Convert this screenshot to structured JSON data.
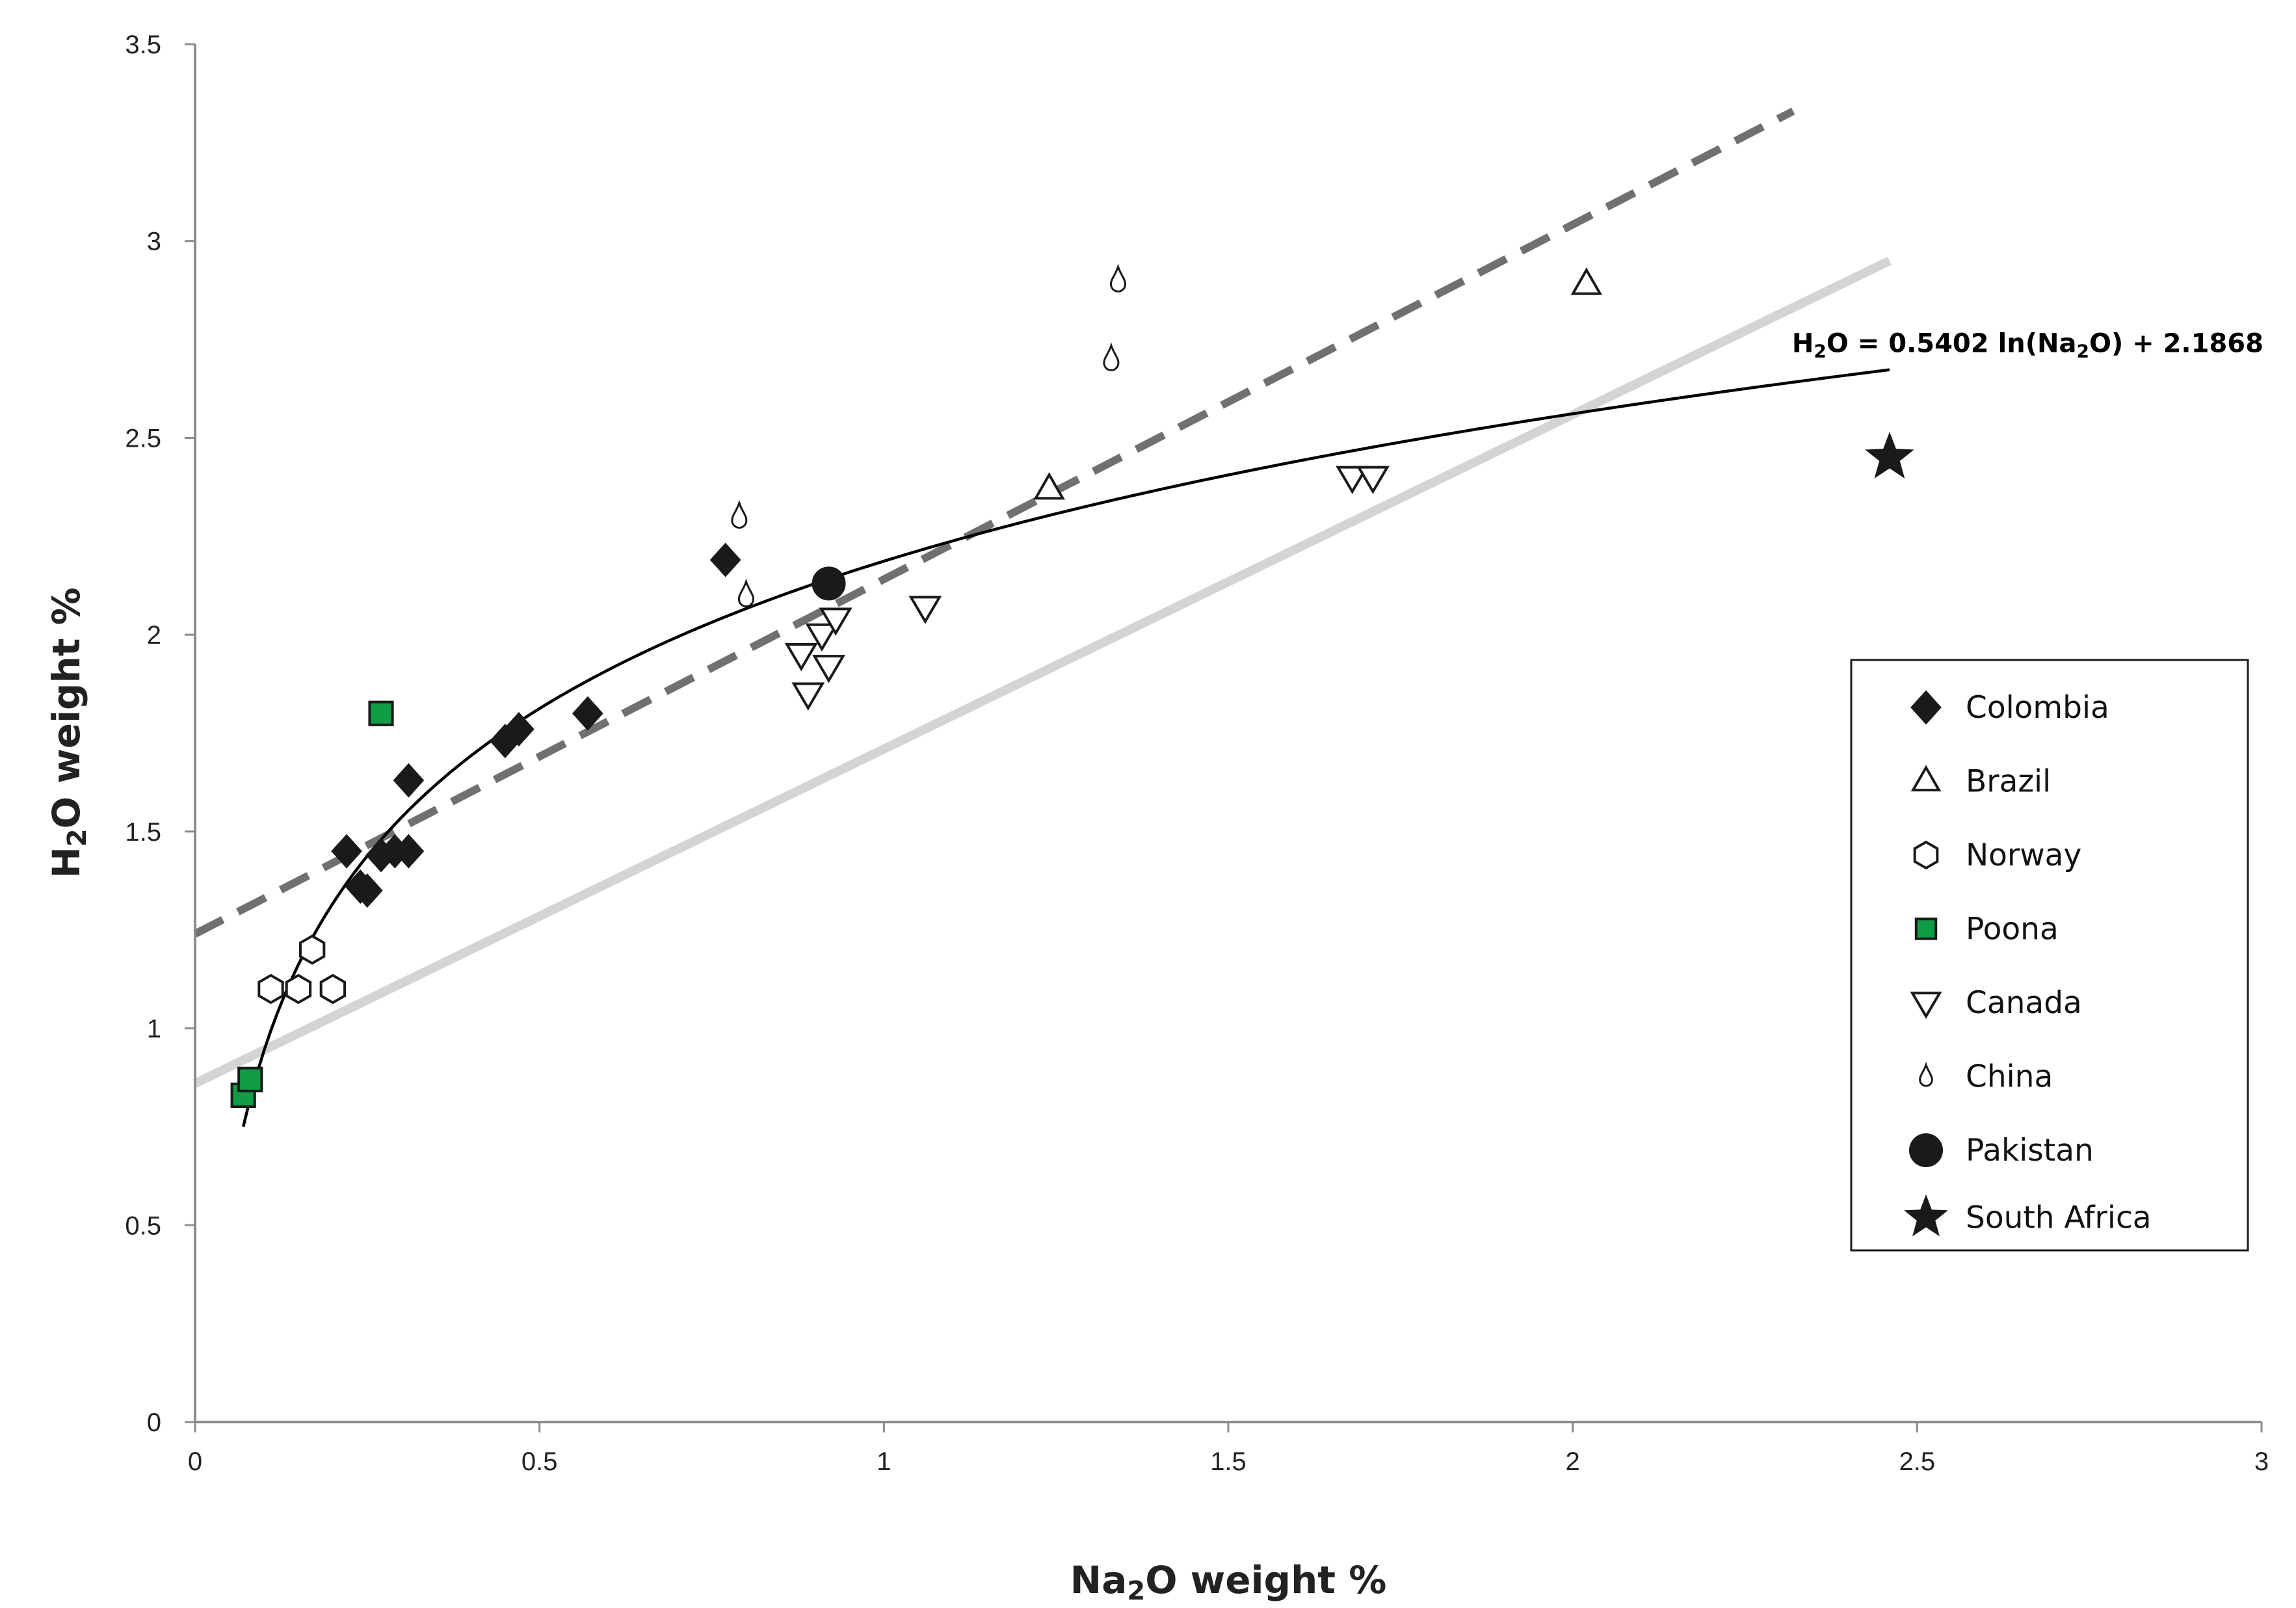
{
  "chart_data": {
    "type": "scatter",
    "title": "",
    "xlabel": {
      "pre": "Na",
      "sub": "2",
      "post": "O weight %"
    },
    "ylabel": {
      "pre": "H",
      "sub": "2",
      "post": "O weight %"
    },
    "xlim": [
      0,
      3
    ],
    "ylim": [
      0,
      3.5
    ],
    "x_ticks": [
      0,
      0.5,
      1,
      1.5,
      2,
      2.5,
      3
    ],
    "x_tick_labels": [
      "0",
      "0.5",
      "1",
      "1.5",
      "2",
      "2.5",
      "3"
    ],
    "y_ticks": [
      0,
      0.5,
      1,
      1.5,
      2,
      2.5,
      3,
      3.5
    ],
    "y_tick_labels": [
      "0",
      "0.5",
      "1",
      "1.5",
      "2",
      "2.5",
      "3",
      "3.5"
    ],
    "grid": false,
    "legend_position": "right",
    "series": [
      {
        "name": "Colombia",
        "marker": "diamond",
        "fill": "#1a1a1a",
        "stroke": "#1a1a1a",
        "points": [
          [
            0.22,
            1.45
          ],
          [
            0.24,
            1.36
          ],
          [
            0.25,
            1.35
          ],
          [
            0.27,
            1.44
          ],
          [
            0.29,
            1.45
          ],
          [
            0.31,
            1.45
          ],
          [
            0.31,
            1.63
          ],
          [
            0.45,
            1.73
          ],
          [
            0.47,
            1.76
          ],
          [
            0.57,
            1.8
          ],
          [
            0.77,
            2.19
          ]
        ]
      },
      {
        "name": "Brazil",
        "marker": "triangle-up",
        "fill": "#ffffff",
        "stroke": "#1a1a1a",
        "points": [
          [
            1.24,
            2.37
          ],
          [
            2.02,
            2.89
          ]
        ]
      },
      {
        "name": "Norway",
        "marker": "hexagon",
        "fill": "#ffffff",
        "stroke": "#1a1a1a",
        "points": [
          [
            0.11,
            1.1
          ],
          [
            0.15,
            1.1
          ],
          [
            0.17,
            1.2
          ],
          [
            0.2,
            1.1
          ]
        ]
      },
      {
        "name": "Poona",
        "marker": "square",
        "fill": "#0f9d46",
        "stroke": "#1a1a1a",
        "points": [
          [
            0.07,
            0.83
          ],
          [
            0.08,
            0.87
          ],
          [
            0.27,
            1.8
          ]
        ]
      },
      {
        "name": "Canada",
        "marker": "triangle-down",
        "fill": "#ffffff",
        "stroke": "#1a1a1a",
        "points": [
          [
            0.88,
            1.95
          ],
          [
            0.89,
            1.85
          ],
          [
            0.91,
            2.0
          ],
          [
            0.92,
            1.92
          ],
          [
            0.93,
            2.04
          ],
          [
            1.06,
            2.07
          ],
          [
            1.68,
            2.4
          ],
          [
            1.71,
            2.4
          ]
        ]
      },
      {
        "name": "China",
        "marker": "drop",
        "fill": "#ffffff",
        "stroke": "#1a1a1a",
        "points": [
          [
            0.79,
            2.3
          ],
          [
            0.8,
            2.1
          ],
          [
            1.33,
            2.7
          ],
          [
            1.34,
            2.9
          ]
        ]
      },
      {
        "name": "Pakistan",
        "marker": "circle",
        "fill": "#1a1a1a",
        "stroke": "#1a1a1a",
        "points": [
          [
            0.92,
            2.13
          ]
        ]
      },
      {
        "name": "South Africa",
        "marker": "star",
        "fill": "#1a1a1a",
        "stroke": "#1a1a1a",
        "points": [
          [
            2.46,
            2.45
          ]
        ]
      }
    ],
    "trendlines": [
      {
        "name": "log-fit",
        "kind": "log",
        "a": 0.5402,
        "b": 2.1868,
        "x_range": [
          0.07,
          2.46
        ],
        "color": "#000000",
        "style": "solid"
      },
      {
        "name": "dashed-linear",
        "kind": "linear",
        "x_range": [
          0,
          2.32
        ],
        "y_range": [
          1.24,
          3.33
        ],
        "color": "#707070",
        "style": "dashed"
      },
      {
        "name": "light-linear",
        "kind": "linear",
        "x_range": [
          0,
          2.46
        ],
        "y_range": [
          0.86,
          2.95
        ],
        "color": "#d4d4d4",
        "style": "solid"
      }
    ],
    "annotations": [
      {
        "target": "log-fit",
        "at": [
          2.46,
          2.68
        ],
        "parts": [
          {
            "t": "H"
          },
          {
            "t": "2",
            "sub": true
          },
          {
            "t": "O = 0.5402 ln(Na"
          },
          {
            "t": "2",
            "sub": true
          },
          {
            "t": "O) + 2.1868"
          }
        ]
      }
    ]
  }
}
